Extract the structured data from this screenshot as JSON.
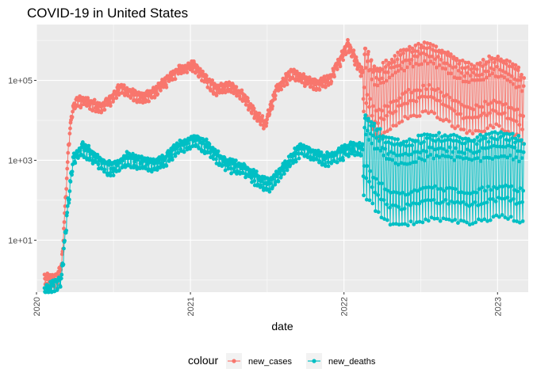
{
  "chart_data": {
    "type": "line",
    "title": "COVID-19 in United States",
    "xlabel": "date",
    "ylabel": "",
    "y_scale": "log10",
    "ylim": [
      0.5,
      2500000
    ],
    "x_range": [
      "2020-01-01",
      "2023-03-15"
    ],
    "x_ticks": [
      {
        "date": "2020-01-01",
        "label": "2020"
      },
      {
        "date": "2021-01-01",
        "label": "2021"
      },
      {
        "date": "2022-01-01",
        "label": "2022"
      },
      {
        "date": "2023-01-01",
        "label": "2023"
      }
    ],
    "y_ticks": [
      {
        "value": 10,
        "label": "1e+01"
      },
      {
        "value": 1000,
        "label": "1e+03"
      },
      {
        "value": 100000,
        "label": "1e+05"
      }
    ],
    "grid": true,
    "legend": {
      "title": "colour",
      "position": "bottom"
    },
    "series": [
      {
        "name": "new_cases",
        "color": "#F8766D",
        "trend": [
          [
            "2020-01-20",
            1
          ],
          [
            "2020-02-15",
            1
          ],
          [
            "2020-03-01",
            2
          ],
          [
            "2020-03-10",
            100
          ],
          [
            "2020-03-18",
            3000
          ],
          [
            "2020-03-25",
            15000
          ],
          [
            "2020-04-05",
            30000
          ],
          [
            "2020-05-01",
            28000
          ],
          [
            "2020-06-01",
            20000
          ],
          [
            "2020-06-20",
            30000
          ],
          [
            "2020-07-20",
            65000
          ],
          [
            "2020-08-15",
            45000
          ],
          [
            "2020-09-10",
            35000
          ],
          [
            "2020-10-01",
            45000
          ],
          [
            "2020-11-01",
            90000
          ],
          [
            "2020-12-01",
            170000
          ],
          [
            "2021-01-08",
            240000
          ],
          [
            "2021-02-01",
            130000
          ],
          [
            "2021-03-01",
            60000
          ],
          [
            "2021-04-10",
            70000
          ],
          [
            "2021-05-10",
            35000
          ],
          [
            "2021-06-10",
            12000
          ],
          [
            "2021-06-28",
            8000
          ],
          [
            "2021-07-25",
            60000
          ],
          [
            "2021-08-30",
            150000
          ],
          [
            "2021-10-01",
            100000
          ],
          [
            "2021-11-01",
            75000
          ],
          [
            "2021-12-01",
            110000
          ],
          [
            "2022-01-10",
            800000
          ],
          [
            "2022-02-10",
            180000
          ],
          [
            "2022-03-20",
            30000
          ],
          [
            "2022-05-01",
            60000
          ],
          [
            "2022-06-01",
            100000
          ],
          [
            "2022-07-20",
            130000
          ],
          [
            "2022-09-01",
            80000
          ],
          [
            "2022-10-15",
            40000
          ],
          [
            "2022-11-15",
            40000
          ],
          [
            "2022-12-20",
            60000
          ],
          [
            "2023-01-15",
            50000
          ],
          [
            "2023-02-20",
            30000
          ],
          [
            "2023-03-05",
            20000
          ]
        ]
      },
      {
        "name": "new_deaths",
        "color": "#00BFC4",
        "trend": [
          [
            "2020-01-20",
            0.5
          ],
          [
            "2020-02-29",
            1
          ],
          [
            "2020-03-15",
            60
          ],
          [
            "2020-03-28",
            1000
          ],
          [
            "2020-04-20",
            2000
          ],
          [
            "2020-05-15",
            1300
          ],
          [
            "2020-06-15",
            700
          ],
          [
            "2020-07-01",
            600
          ],
          [
            "2020-08-01",
            1100
          ],
          [
            "2020-09-01",
            900
          ],
          [
            "2020-10-05",
            750
          ],
          [
            "2020-11-01",
            1000
          ],
          [
            "2020-12-01",
            2000
          ],
          [
            "2021-01-12",
            3300
          ],
          [
            "2021-02-15",
            2000
          ],
          [
            "2021-03-15",
            1000
          ],
          [
            "2021-04-15",
            700
          ],
          [
            "2021-05-15",
            550
          ],
          [
            "2021-06-15",
            300
          ],
          [
            "2021-07-10",
            250
          ],
          [
            "2021-08-15",
            700
          ],
          [
            "2021-09-20",
            2000
          ],
          [
            "2021-10-20",
            1500
          ],
          [
            "2021-11-15",
            1000
          ],
          [
            "2021-12-15",
            1300
          ],
          [
            "2022-01-25",
            2200
          ],
          [
            "2022-02-15",
            1800
          ],
          [
            "2022-03-15",
            800
          ],
          [
            "2022-04-15",
            350
          ],
          [
            "2022-05-15",
            300
          ],
          [
            "2022-06-15",
            350
          ],
          [
            "2022-08-01",
            450
          ],
          [
            "2022-09-15",
            400
          ],
          [
            "2022-11-01",
            350
          ],
          [
            "2022-12-20",
            450
          ],
          [
            "2023-01-20",
            500
          ],
          [
            "2023-03-05",
            350
          ]
        ]
      }
    ]
  }
}
